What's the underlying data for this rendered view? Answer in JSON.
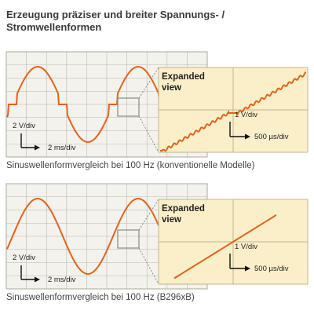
{
  "title_line1": "Erzeugung präziser und breiter Spannungs- /",
  "title_line2": "Stromwellenformen",
  "colors": {
    "wave": "#e0641a",
    "scope_bg": "#f3f2ec",
    "scope_grid": "#b8b8b0",
    "expanded_bg": "#fbefc9",
    "expanded_border": "#c2b48a",
    "connector": "#8a8a8a"
  },
  "panels": [
    {
      "id": "conventional",
      "waveform": "stepped-sine",
      "caption": "Sinuswellenformvergleich bei 100 Hz (konventionelle Modelle)",
      "scope_vertical_scale": "2 V/div",
      "scope_horizontal_scale": "2 ms/div",
      "expanded_title_line1": "Expanded",
      "expanded_title_line2": "view",
      "expanded_vertical_scale": "1 V/div",
      "expanded_horizontal_scale": "500 µs/div"
    },
    {
      "id": "b296xb",
      "waveform": "smooth-sine",
      "caption": "Sinuswellenformvergleich bei 100 Hz (B296xB)",
      "scope_vertical_scale": "2 V/div",
      "scope_horizontal_scale": "2 ms/div",
      "expanded_title_line1": "Expanded",
      "expanded_title_line2": "view",
      "expanded_vertical_scale": "1 V/div",
      "expanded_horizontal_scale": "500 µs/div"
    }
  ]
}
